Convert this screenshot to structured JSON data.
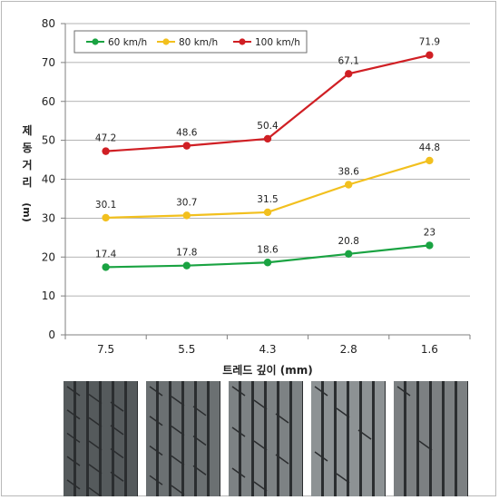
{
  "chart_data": {
    "type": "line",
    "title": "",
    "xlabel": "트레드 깊이 (mm)",
    "ylabel_chars": [
      "제",
      "동",
      "거",
      "리"
    ],
    "ylabel_unit": "(m)",
    "categories": [
      "7.5",
      "5.5",
      "4.3",
      "2.8",
      "1.6"
    ],
    "ylim": [
      0,
      80
    ],
    "yticks": [
      0,
      10,
      20,
      30,
      40,
      50,
      60,
      70,
      80
    ],
    "grid": true,
    "legend_position": "top-left",
    "series": [
      {
        "name": "60 km/h",
        "color": "#1aa342",
        "values": [
          17.4,
          17.8,
          18.6,
          20.8,
          23
        ],
        "labels": [
          "17.4",
          "17.8",
          "18.6",
          "20.8",
          "23"
        ]
      },
      {
        "name": "80 km/h",
        "color": "#f2c01e",
        "values": [
          30.1,
          30.7,
          31.5,
          38.6,
          44.8
        ],
        "labels": [
          "30.1",
          "30.7",
          "31.5",
          "38.6",
          "44.8"
        ]
      },
      {
        "name": "100 km/h",
        "color": "#d01f24",
        "values": [
          47.2,
          48.6,
          50.4,
          67.1,
          71.9
        ],
        "labels": [
          "47.2",
          "48.6",
          "50.4",
          "67.1",
          "71.9"
        ]
      }
    ]
  },
  "tire_photos": [
    {
      "depth": "7.5",
      "tone": "#555a5c"
    },
    {
      "depth": "5.5",
      "tone": "#6b7072"
    },
    {
      "depth": "4.3",
      "tone": "#7d8284"
    },
    {
      "depth": "2.8",
      "tone": "#8d9294"
    },
    {
      "depth": "1.6",
      "tone": "#7c8082"
    }
  ]
}
